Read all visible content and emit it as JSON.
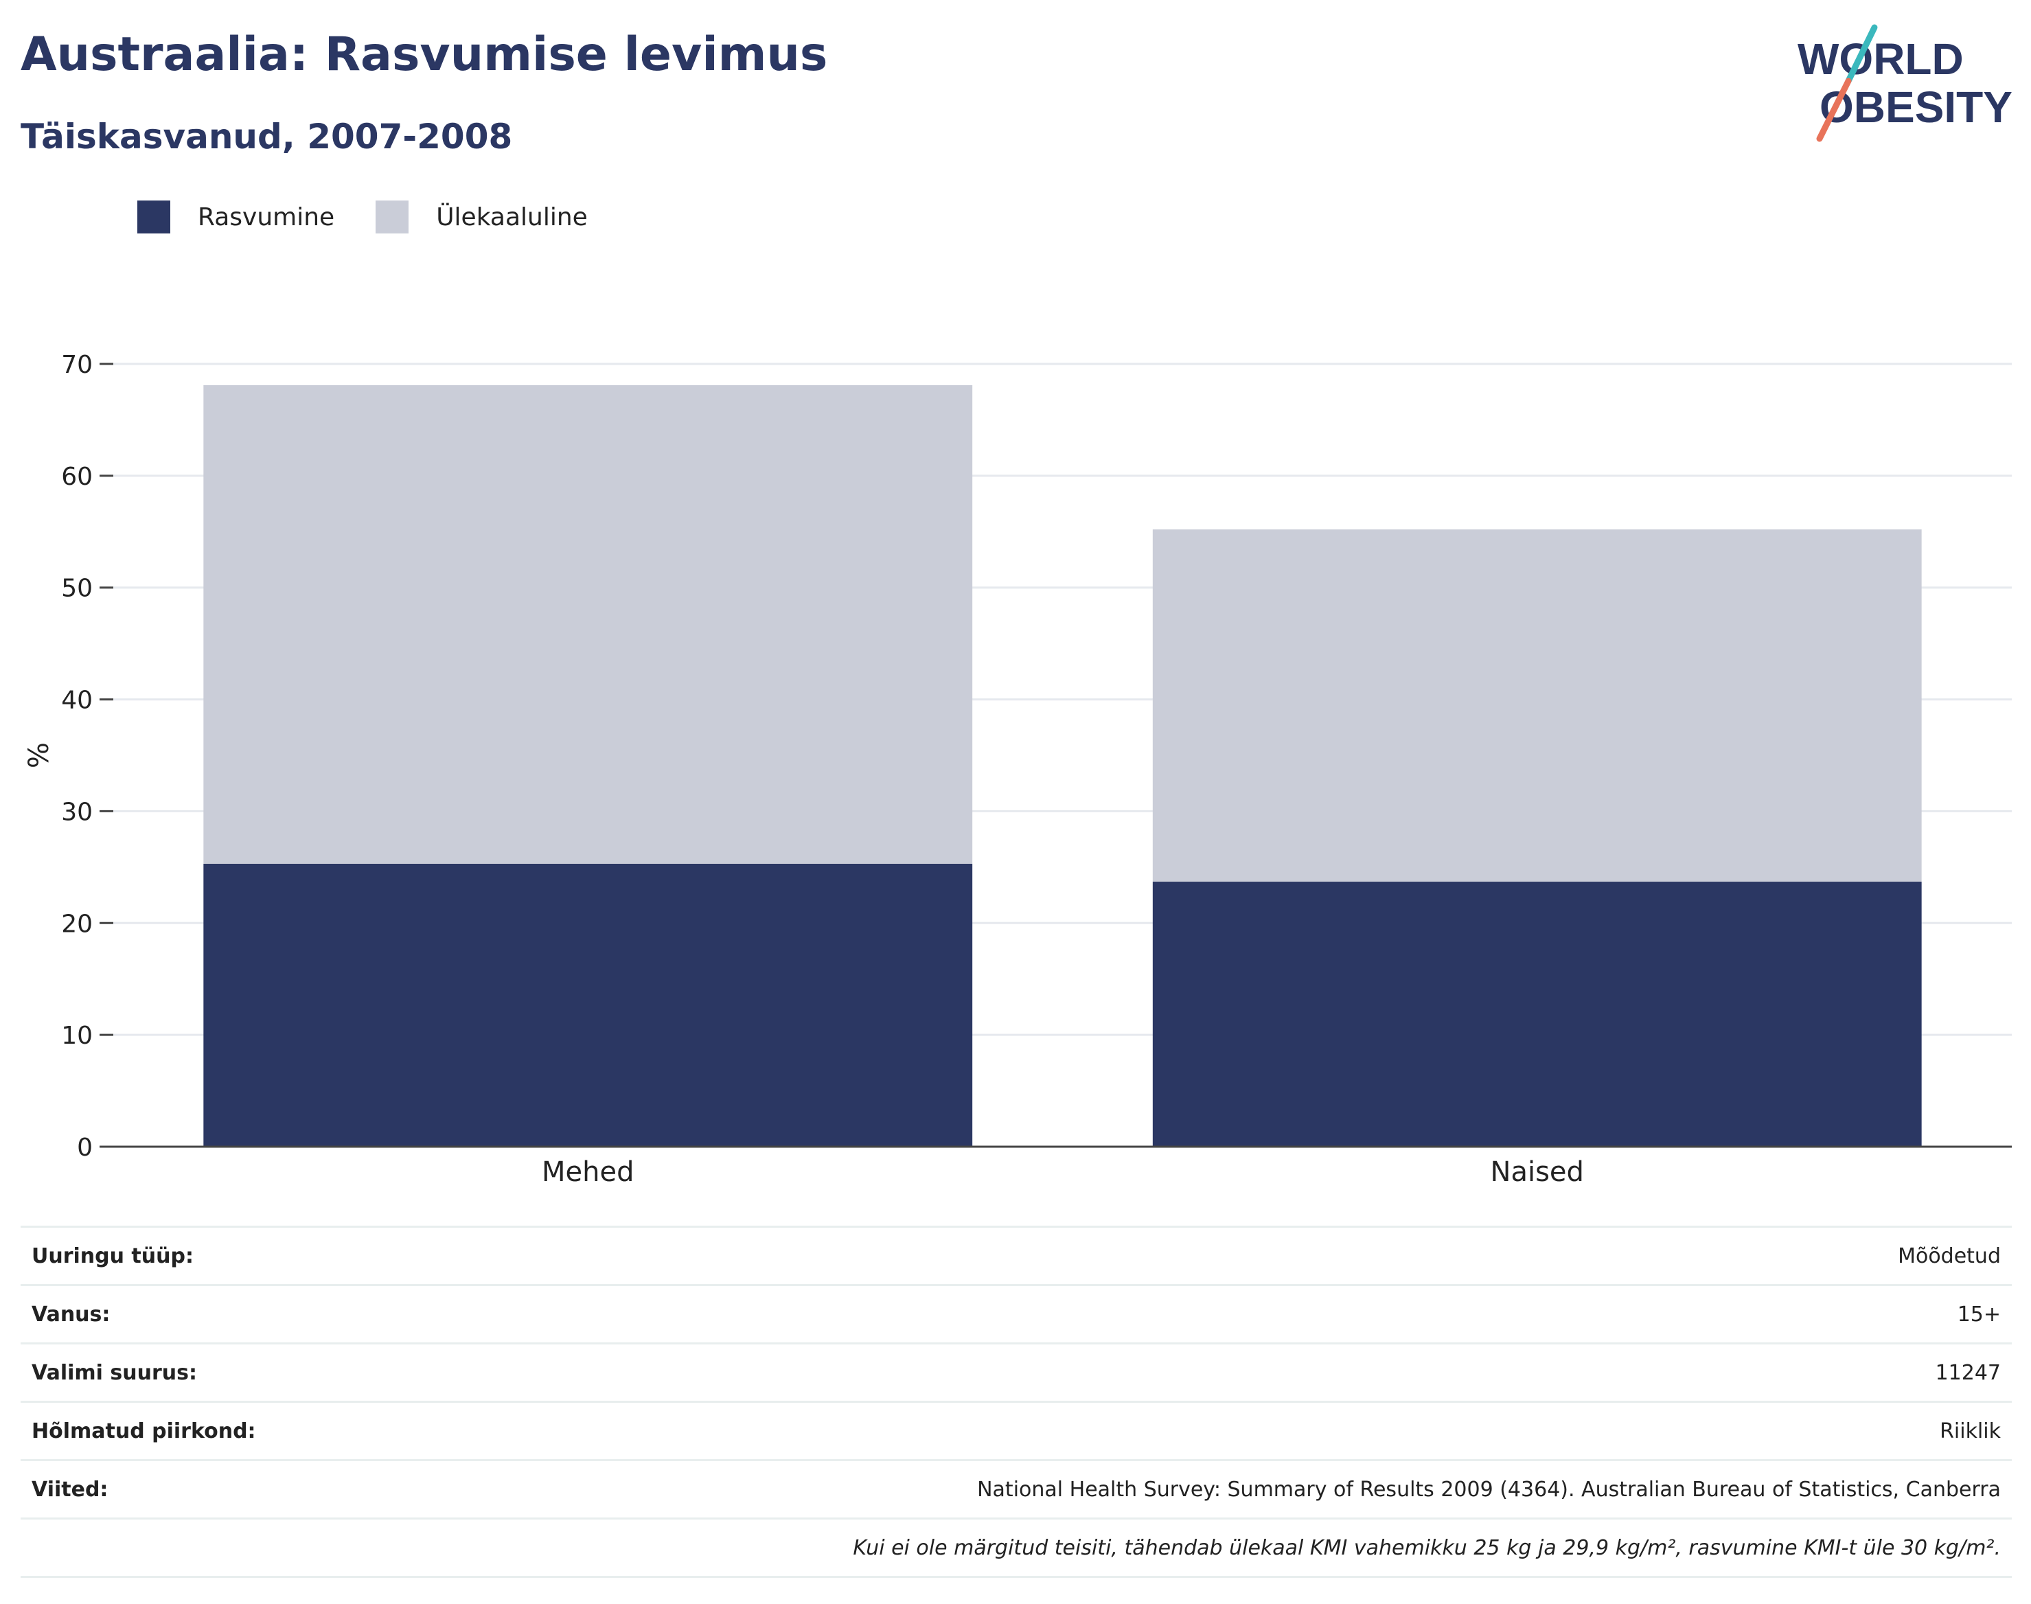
{
  "header": {
    "title": "Austraalia: Rasvumise levimus",
    "subtitle": "Täiskasvanud, 2007-2008"
  },
  "logo": {
    "line1": "WORLD",
    "line2": "OBESITY"
  },
  "colors": {
    "obesity": "#2b3763",
    "overweight": "#cacdd8",
    "text_dark": "#2b3763",
    "logo_teal": "#3bb8bd",
    "logo_coral": "#e8735a"
  },
  "legend": [
    {
      "label": "Rasvumine",
      "color": "#2b3763"
    },
    {
      "label": "Ülekaaluline",
      "color": "#cacdd8"
    }
  ],
  "chart_data": {
    "type": "bar",
    "stacked": true,
    "categories": [
      "Mehed",
      "Naised"
    ],
    "series": [
      {
        "name": "Rasvumine",
        "values": [
          25.3,
          23.7
        ]
      },
      {
        "name": "Ülekaaluline",
        "values": [
          42.8,
          31.5
        ]
      }
    ],
    "ylabel": "%",
    "ylim": [
      0,
      70
    ],
    "yticks": [
      0,
      10,
      20,
      30,
      40,
      50,
      60,
      70
    ],
    "grid": true
  },
  "meta": {
    "rows": [
      {
        "key": "Uuringu tüüp:",
        "value": "Mõõdetud"
      },
      {
        "key": "Vanus:",
        "value": "15+"
      },
      {
        "key": "Valimi suurus:",
        "value": "11247"
      },
      {
        "key": "Hõlmatud piirkond:",
        "value": "Riiklik"
      },
      {
        "key": "Viited:",
        "value": "National Health Survey: Summary of Results 2009 (4364). Australian Bureau of Statistics, Canberra"
      }
    ],
    "footnote": "Kui ei ole märgitud teisiti, tähendab ülekaal KMI vahemikku 25 kg ja 29,9 kg/m², rasvumine KMI-t üle 30 kg/m²."
  }
}
